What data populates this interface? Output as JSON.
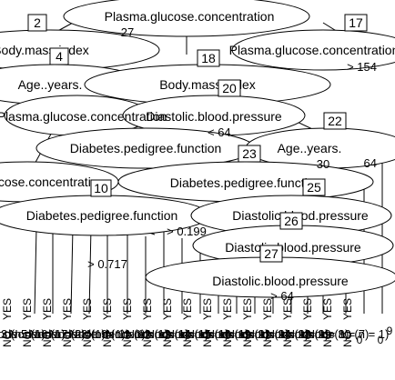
{
  "node_labels": [
    "Plasma.glucose.concentration",
    "Body.mass.index",
    "Plasma.glucose.concentration",
    "Age..years.",
    "Body.mass.index",
    "Plasma.glucose.concentration",
    "Diastolic.blood.pressure",
    "Diabetes.pedigree.function",
    "Age..years.",
    "Plasma.glucose.concentration",
    "Diabetes.pedigree.function",
    "Diabetes.pedigree.function",
    "Diastolic.blood.pressure",
    "Diastolic.blood.pressure",
    "Diastolic.blood.pressure"
  ],
  "node_ids": [
    "2",
    "4",
    "10",
    "17",
    "18",
    "20",
    "22",
    "23",
    "25",
    "26",
    "27"
  ],
  "split_labels": [
    "> 154",
    "< 64",
    "> 0.717",
    "> 0.199",
    "> 64",
    "27",
    "64",
    "30"
  ],
  "leaf_labels": [
    "Node 3 (n = 1)",
    "Node 5 (n = 1)",
    "Node 6 (n = 2)",
    "Node 7 (n = 1)",
    "Node 8 (n = 1)",
    "Node 9 (n = 1)",
    "Node 11 (n = 1)",
    "Node 12 (n = 1)",
    "Node 13 (n = 1)",
    "Node 14 (n = 1)",
    "Node 15 (n = 1)",
    "Node 16 (n = 1)",
    "Node 19 (n = 1)",
    "Node 21 (n = 1)",
    "Node 24 (n = 1)",
    "Node 28 (n = 1)",
    "Node 29 (n = 7)",
    "Node 30 (n = 1)"
  ],
  "leaf_class_labels": [
    "NO",
    "YES"
  ],
  "leaf_value_labels": [
    "0",
    "0",
    "9"
  ]
}
